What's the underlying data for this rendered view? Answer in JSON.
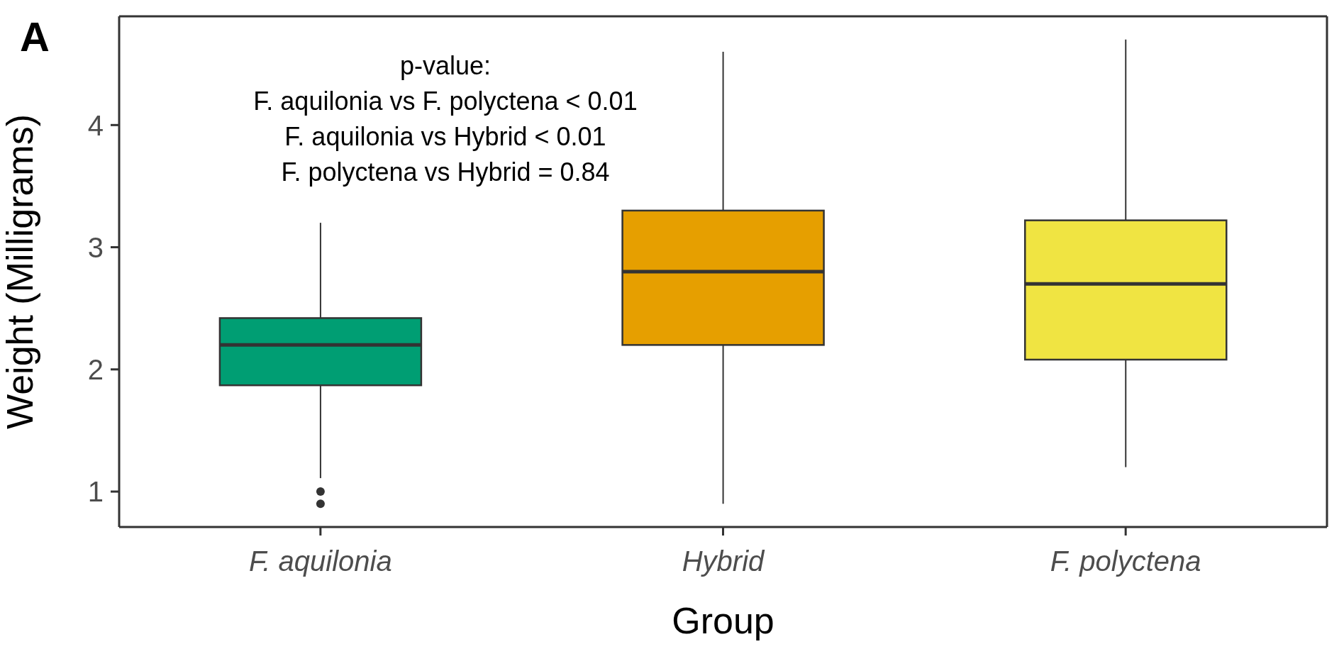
{
  "chart_data": {
    "type": "box",
    "xlabel": "Group",
    "ylabel": "Weight (Milligrams)",
    "categories": [
      "F. aquilonia",
      "Hybrid",
      "F. polyctena"
    ],
    "colors": [
      "#009e73",
      "#e69f00",
      "#f0e442"
    ],
    "boxes": [
      {
        "low": 1.11,
        "q1": 1.87,
        "median": 2.2,
        "q3": 2.42,
        "high": 3.2,
        "outliers": [
          1.0,
          0.9
        ]
      },
      {
        "low": 0.9,
        "q1": 2.2,
        "median": 2.8,
        "q3": 3.3,
        "high": 4.6
      },
      {
        "low": 1.2,
        "q1": 2.08,
        "median": 2.7,
        "q3": 3.22,
        "high": 4.7
      }
    ],
    "ylim": [
      0.71,
      4.89
    ],
    "yticks": [
      1,
      2,
      3,
      4
    ],
    "grid": false,
    "annotations": [
      "A",
      "p-value:",
      "F. aquilonia vs F. polyctena < 0.01",
      "F. aquilonia vs Hybrid < 0.01",
      "F. polyctena vs Hybrid = 0.84"
    ]
  }
}
